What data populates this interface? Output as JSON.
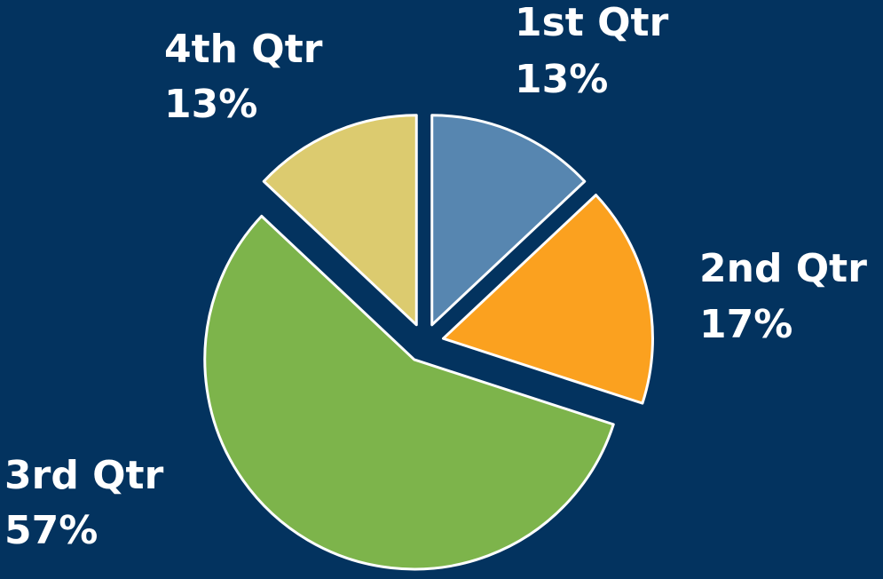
{
  "chart_data": {
    "type": "pie",
    "categories": [
      "1st Qtr",
      "2nd Qtr",
      "3rd Qtr",
      "4th Qtr"
    ],
    "values": [
      13,
      17,
      57,
      13
    ],
    "value_labels": [
      "13%",
      "17%",
      "57%",
      "13%"
    ],
    "colors": [
      "#5786b0",
      "#fba11f",
      "#7db44b",
      "#dccb6f"
    ]
  }
}
